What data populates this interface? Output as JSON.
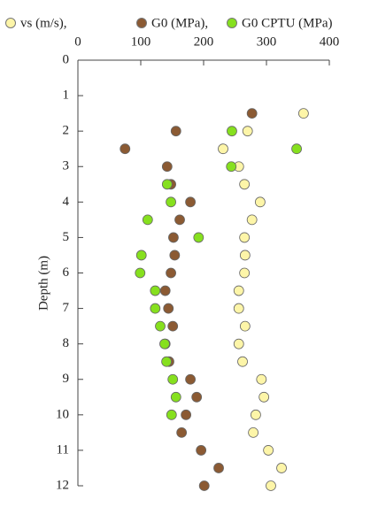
{
  "chart_data": {
    "type": "scatter",
    "y_label": "Depth (m)",
    "xlim": [
      0,
      400
    ],
    "xticks": [
      0,
      100,
      200,
      300,
      400
    ],
    "ylim": [
      0,
      12
    ],
    "yticks": [
      0,
      1,
      2,
      3,
      4,
      5,
      6,
      7,
      8,
      9,
      10,
      11,
      12
    ],
    "y_inverted": true,
    "x_axis_position": "top",
    "series": [
      {
        "name": "vs (m/s),",
        "color": "#fdf5a8",
        "y": [
          1.5,
          2,
          2.5,
          3,
          3.5,
          4,
          4.5,
          5,
          5.5,
          6,
          6.5,
          7,
          7.5,
          8,
          8.5,
          9,
          9.5,
          10,
          10.5,
          11,
          11.5,
          12
        ],
        "x": [
          359,
          270,
          231,
          256,
          265,
          290,
          277,
          265,
          266,
          265,
          256,
          256,
          266,
          256,
          262,
          292,
          296,
          283,
          279,
          303,
          324,
          307
        ]
      },
      {
        "name": "G0 (MPa),",
        "color": "#8b5a33",
        "y": [
          1.5,
          2,
          2.5,
          3,
          3.5,
          4,
          4.5,
          5,
          5.5,
          6,
          6.5,
          7,
          7.5,
          8,
          8.5,
          9,
          9.5,
          10,
          10.5,
          11,
          11.5,
          12
        ],
        "x": [
          277,
          156,
          75,
          142,
          148,
          179,
          162,
          152,
          154,
          148,
          139,
          144,
          151,
          139,
          145,
          179,
          189,
          172,
          165,
          196,
          224,
          201
        ]
      },
      {
        "name": "G0 CPTU (MPa)",
        "color": "#86e01e",
        "y": [
          2,
          2.5,
          3,
          3.5,
          4,
          4.5,
          5,
          5.5,
          6,
          6.5,
          7,
          7.5,
          8,
          8.5,
          9,
          9.5,
          10
        ],
        "x": [
          245,
          348,
          244,
          142,
          148,
          111,
          192,
          101,
          99,
          123,
          123,
          131,
          138,
          141,
          151,
          156,
          149
        ]
      }
    ]
  }
}
